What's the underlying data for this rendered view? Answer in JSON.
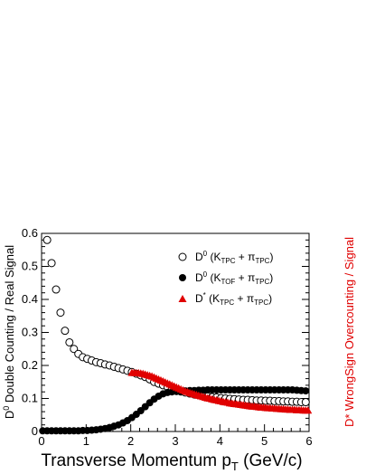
{
  "chart_data": {
    "type": "scatter",
    "xlabel": "Transverse Momentum p",
    "xlabel_sub": "T",
    "xlabel_unit": " (GeV/c)",
    "ylabel_left": "D",
    "ylabel_left_sup": "0",
    "ylabel_left_rest": " Double Counting / Real Signal",
    "ylabel_right": "D* WrongSign Overcounting / Signal",
    "xlim": [
      0,
      6
    ],
    "ylim": [
      0,
      0.6
    ],
    "grid": false,
    "legend_position": "top-right",
    "x_ticks": [
      "0",
      "1",
      "2",
      "3",
      "4",
      "5",
      "6"
    ],
    "y_ticks": [
      "0",
      "0.1",
      "0.2",
      "0.3",
      "0.4",
      "0.5",
      "0.6"
    ],
    "legend": [
      {
        "key": "open",
        "main": "D",
        "sup": "0",
        "paren": " (K",
        "k_sub": "TPC",
        "plus": " + π",
        "pi_sub": "TPC",
        "close": ")"
      },
      {
        "key": "filled",
        "main": "D",
        "sup": "0",
        "paren": " (K",
        "k_sub": "TOF",
        "plus": " + π",
        "pi_sub": "TPC",
        "close": ")"
      },
      {
        "key": "triangle",
        "main": "D",
        "sup": "*",
        "paren": " (K",
        "k_sub": "TPC",
        "plus": " + π",
        "pi_sub": "TPC",
        "close": ")"
      }
    ],
    "series": [
      {
        "marker": "open-circle",
        "color": "#000000",
        "x": [
          0.125,
          0.225,
          0.325,
          0.425,
          0.525,
          0.625,
          0.725,
          0.825,
          0.925,
          1.025,
          1.125,
          1.225,
          1.325,
          1.425,
          1.525,
          1.625,
          1.725,
          1.825,
          1.925,
          2.025,
          2.125,
          2.225,
          2.325,
          2.425,
          2.525,
          2.625,
          2.725,
          2.825,
          2.925,
          3.025,
          3.125,
          3.225,
          3.325,
          3.425,
          3.525,
          3.625,
          3.725,
          3.825,
          3.925,
          4.025,
          4.125,
          4.225,
          4.325,
          4.425,
          4.525,
          4.625,
          4.725,
          4.825,
          4.925,
          5.025,
          5.125,
          5.225,
          5.325,
          5.425,
          5.525,
          5.625,
          5.725,
          5.825,
          5.925
        ],
        "y": [
          0.58,
          0.51,
          0.43,
          0.36,
          0.305,
          0.27,
          0.25,
          0.235,
          0.225,
          0.22,
          0.215,
          0.21,
          0.207,
          0.203,
          0.2,
          0.196,
          0.192,
          0.188,
          0.184,
          0.18,
          0.175,
          0.17,
          0.165,
          0.158,
          0.15,
          0.145,
          0.14,
          0.135,
          0.13,
          0.125,
          0.121,
          0.118,
          0.115,
          0.112,
          0.11,
          0.108,
          0.106,
          0.104,
          0.103,
          0.101,
          0.1,
          0.099,
          0.098,
          0.097,
          0.096,
          0.096,
          0.095,
          0.094,
          0.094,
          0.093,
          0.093,
          0.092,
          0.092,
          0.091,
          0.091,
          0.09,
          0.09,
          0.089,
          0.089
        ]
      },
      {
        "marker": "filled-circle",
        "color": "#000000",
        "x": [
          0.025,
          0.125,
          0.225,
          0.325,
          0.425,
          0.525,
          0.625,
          0.725,
          0.825,
          0.925,
          1.025,
          1.125,
          1.225,
          1.325,
          1.425,
          1.525,
          1.625,
          1.725,
          1.825,
          1.925,
          2.025,
          2.125,
          2.225,
          2.325,
          2.425,
          2.525,
          2.625,
          2.725,
          2.825,
          2.925,
          3.025,
          3.125,
          3.225,
          3.325,
          3.425,
          3.525,
          3.625,
          3.725,
          3.825,
          3.925,
          4.025,
          4.125,
          4.225,
          4.325,
          4.425,
          4.525,
          4.625,
          4.725,
          4.825,
          4.925,
          5.025,
          5.125,
          5.225,
          5.325,
          5.425,
          5.525,
          5.625,
          5.725,
          5.825,
          5.925
        ],
        "y": [
          0.002,
          0.002,
          0.002,
          0.002,
          0.002,
          0.002,
          0.002,
          0.002,
          0.002,
          0.003,
          0.003,
          0.004,
          0.005,
          0.007,
          0.009,
          0.012,
          0.016,
          0.02,
          0.026,
          0.033,
          0.042,
          0.052,
          0.063,
          0.075,
          0.087,
          0.098,
          0.107,
          0.114,
          0.118,
          0.12,
          0.121,
          0.122,
          0.123,
          0.124,
          0.124,
          0.125,
          0.125,
          0.126,
          0.126,
          0.126,
          0.126,
          0.126,
          0.126,
          0.126,
          0.126,
          0.126,
          0.126,
          0.126,
          0.126,
          0.126,
          0.126,
          0.126,
          0.126,
          0.126,
          0.126,
          0.126,
          0.126,
          0.125,
          0.124,
          0.123
        ]
      },
      {
        "marker": "triangle",
        "color": "#e00000",
        "x": [
          2.025,
          2.075,
          2.125,
          2.175,
          2.225,
          2.275,
          2.325,
          2.375,
          2.425,
          2.475,
          2.525,
          2.575,
          2.625,
          2.675,
          2.725,
          2.775,
          2.825,
          2.875,
          2.925,
          2.975,
          3.025,
          3.075,
          3.125,
          3.175,
          3.225,
          3.275,
          3.325,
          3.375,
          3.425,
          3.475,
          3.525,
          3.575,
          3.625,
          3.675,
          3.725,
          3.775,
          3.825,
          3.875,
          3.925,
          3.975,
          4.025,
          4.075,
          4.125,
          4.175,
          4.225,
          4.275,
          4.325,
          4.375,
          4.425,
          4.475,
          4.525,
          4.575,
          4.625,
          4.675,
          4.725,
          4.775,
          4.825,
          4.875,
          4.925,
          4.975,
          5.025,
          5.075,
          5.125,
          5.175,
          5.225,
          5.275,
          5.325,
          5.375,
          5.425,
          5.475,
          5.525,
          5.575,
          5.625,
          5.675,
          5.725,
          5.775,
          5.825,
          5.875,
          5.925,
          5.975
        ],
        "y": [
          0.178,
          0.178,
          0.177,
          0.177,
          0.176,
          0.175,
          0.173,
          0.171,
          0.169,
          0.167,
          0.164,
          0.161,
          0.158,
          0.155,
          0.152,
          0.149,
          0.146,
          0.143,
          0.14,
          0.137,
          0.134,
          0.131,
          0.128,
          0.125,
          0.122,
          0.12,
          0.117,
          0.115,
          0.113,
          0.111,
          0.109,
          0.107,
          0.105,
          0.103,
          0.101,
          0.1,
          0.098,
          0.096,
          0.095,
          0.093,
          0.092,
          0.09,
          0.089,
          0.088,
          0.086,
          0.085,
          0.084,
          0.083,
          0.082,
          0.081,
          0.08,
          0.079,
          0.078,
          0.077,
          0.076,
          0.076,
          0.075,
          0.074,
          0.073,
          0.073,
          0.072,
          0.071,
          0.071,
          0.07,
          0.07,
          0.069,
          0.069,
          0.068,
          0.068,
          0.067,
          0.067,
          0.066,
          0.066,
          0.066,
          0.065,
          0.065,
          0.065,
          0.064,
          0.064,
          0.064
        ]
      }
    ]
  }
}
